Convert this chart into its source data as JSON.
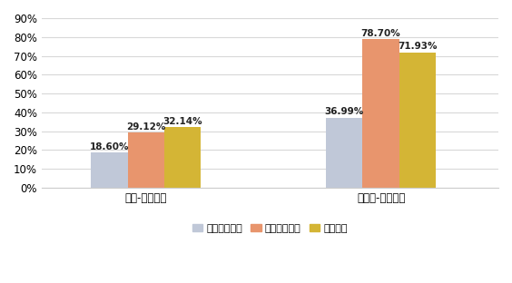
{
  "categories": [
    "本科-当地就业",
    "研究生-当地就业"
  ],
  "series": [
    {
      "name": "太原理工大学",
      "values": [
        18.6,
        36.99
      ],
      "color": "#c0c8d8"
    },
    {
      "name": "山西财经大学",
      "values": [
        29.12,
        78.7
      ],
      "color": "#e8956d"
    },
    {
      "name": "山西大学",
      "values": [
        32.14,
        71.93
      ],
      "color": "#d4b535"
    }
  ],
  "ylim": [
    0,
    90
  ],
  "yticks": [
    0,
    10,
    20,
    30,
    40,
    50,
    60,
    70,
    80,
    90
  ],
  "ytick_labels": [
    "0%",
    "10%",
    "20%",
    "30%",
    "40%",
    "50%",
    "60%",
    "70%",
    "80%",
    "90%"
  ],
  "bar_width": 0.28,
  "group_centers": [
    1.0,
    2.8
  ],
  "xlim": [
    0.2,
    3.7
  ],
  "label_fontsize": 7.5,
  "legend_fontsize": 8,
  "tick_fontsize": 8.5,
  "background_color": "#ffffff",
  "grid_color": "#d8d8d8",
  "spine_color": "#cccccc"
}
